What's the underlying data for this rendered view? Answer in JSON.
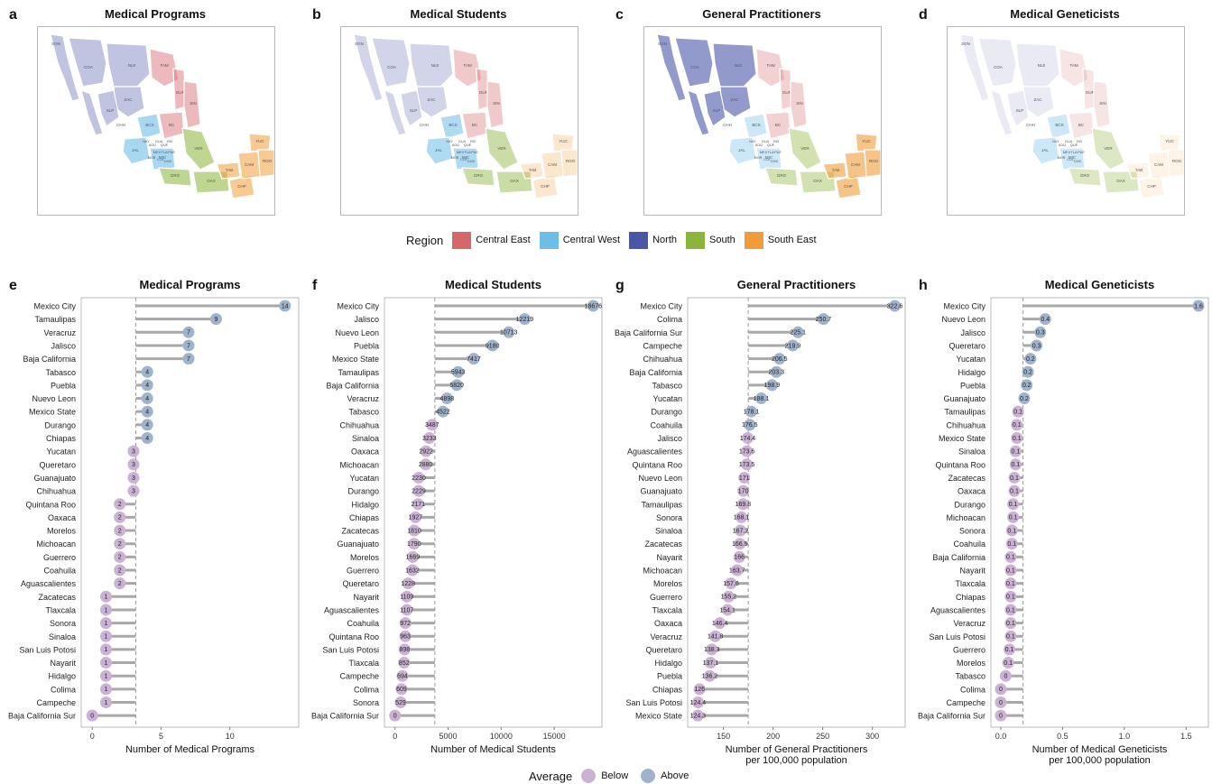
{
  "maps": [
    {
      "letter": "a",
      "title": "Medical Programs"
    },
    {
      "letter": "b",
      "title": "Medical Students"
    },
    {
      "letter": "c",
      "title": "General Practitioners"
    },
    {
      "letter": "d",
      "title": "Medical Geneticists"
    }
  ],
  "map_state_labels": [
    "SON",
    "CHH",
    "COA",
    "NLE",
    "TAM",
    "DUR",
    "SIN",
    "ZAC",
    "SLP",
    "BCS",
    "BC",
    "JAL",
    "MIC",
    "GRO",
    "OAX",
    "CHP",
    "VER",
    "YUC",
    "ROO",
    "CAM",
    "TAB",
    "NAY",
    "AGU",
    "GUA",
    "QUE",
    "HID",
    "MEX",
    "TLA",
    "PUE",
    "MOR",
    "COL",
    "CMX"
  ],
  "region_legend": {
    "title": "Region",
    "items": [
      {
        "label": "Central East",
        "color": "#d4676a"
      },
      {
        "label": "Central West",
        "color": "#6cbde8"
      },
      {
        "label": "North",
        "color": "#4a56a8"
      },
      {
        "label": "South",
        "color": "#8bb43a"
      },
      {
        "label": "South East",
        "color": "#f09c3a"
      }
    ]
  },
  "average_legend": {
    "title": "Average",
    "items": [
      {
        "label": "Below",
        "color": "#cbb1d3"
      },
      {
        "label": "Above",
        "color": "#9fb3cc"
      }
    ]
  },
  "chart_data": [
    {
      "type": "scatter",
      "letter": "e",
      "title": "Medical Programs",
      "xlabel": "Number of Medical Programs",
      "xlim": [
        -0.8,
        15.0
      ],
      "xticks": [
        0,
        5,
        10
      ],
      "average": 3.16,
      "categories": [
        "Mexico City",
        "Tamaulipas",
        "Veracruz",
        "Jalisco",
        "Baja California",
        "Tabasco",
        "Puebla",
        "Nuevo Leon",
        "Mexico State",
        "Durango",
        "Chiapas",
        "Yucatan",
        "Queretaro",
        "Guanajuato",
        "Chihuahua",
        "Quintana Roo",
        "Oaxaca",
        "Morelos",
        "Michoacan",
        "Guerrero",
        "Coahuila",
        "Aguascalientes",
        "Zacatecas",
        "Tlaxcala",
        "Sonora",
        "Sinaloa",
        "San Luis Potosi",
        "Nayarit",
        "Hidalgo",
        "Colima",
        "Campeche",
        "Baja California Sur"
      ],
      "values": [
        14,
        9,
        7,
        7,
        7,
        4,
        4,
        4,
        4,
        4,
        4,
        3,
        3,
        3,
        3,
        2,
        2,
        2,
        2,
        2,
        2,
        2,
        1,
        1,
        1,
        1,
        1,
        1,
        1,
        1,
        1,
        0
      ],
      "labels": [
        "14",
        "9",
        "7",
        "7",
        "7",
        "4",
        "4",
        "4",
        "4",
        "4",
        "4",
        "3",
        "3",
        "3",
        "3",
        "2",
        "2",
        "2",
        "2",
        "2",
        "2",
        "2",
        "1",
        "1",
        "1",
        "1",
        "1",
        "1",
        "1",
        "1",
        "1",
        "0"
      ]
    },
    {
      "type": "scatter",
      "letter": "f",
      "title": "Medical Students",
      "xlabel": "Number of Medical Students",
      "xlim": [
        -1000,
        19500
      ],
      "xticks": [
        0,
        5000,
        10000,
        15000
      ],
      "average": 3750,
      "categories": [
        "Mexico City",
        "Jalisco",
        "Nuevo Leon",
        "Puebla",
        "Mexico State",
        "Tamaulipas",
        "Baja California",
        "Veracruz",
        "Tabasco",
        "Chihuahua",
        "Sinaloa",
        "Oaxaca",
        "Michoacan",
        "Yucatan",
        "Durango",
        "Hidalgo",
        "Chiapas",
        "Zacatecas",
        "Guanajuato",
        "Morelos",
        "Guerrero",
        "Queretaro",
        "Nayarit",
        "Aguascalientes",
        "Coahuila",
        "Quintana Roo",
        "San Luis Potosi",
        "Tlaxcala",
        "Campeche",
        "Colima",
        "Sonora",
        "Baja California Sur"
      ],
      "values": [
        18676,
        12219,
        10713,
        9180,
        7417,
        5943,
        5820,
        4898,
        4522,
        3487,
        3233,
        2922,
        2880,
        2230,
        2229,
        2171,
        1927,
        1810,
        1790,
        1669,
        1632,
        1228,
        1109,
        1107,
        972,
        963,
        898,
        852,
        694,
        609,
        529,
        0
      ],
      "labels": [
        "18676",
        "12219",
        "10713",
        "9180",
        "7417",
        "5943",
        "5820",
        "4898",
        "4522",
        "3487",
        "3233",
        "2922",
        "2880",
        "2230",
        "2229",
        "2171",
        "1927",
        "1810",
        "1790",
        "1669",
        "1632",
        "1228",
        "1109",
        "1107",
        "972",
        "963",
        "898",
        "852",
        "694",
        "609",
        "529",
        "0"
      ]
    },
    {
      "type": "scatter",
      "letter": "g",
      "title": "General Practitioners",
      "xlabel": "Number of General Practitioners",
      "xlabel2": "per 100,000 population",
      "xlim": [
        114,
        333
      ],
      "xticks": [
        150,
        200,
        250,
        300
      ],
      "average": 175,
      "categories": [
        "Mexico City",
        "Colima",
        "Baja California Sur",
        "Campeche",
        "Chihuahua",
        "Baja California",
        "Tabasco",
        "Yucatan",
        "Durango",
        "Coahuila",
        "Jalisco",
        "Aguascalientes",
        "Quintana Roo",
        "Nuevo Leon",
        "Guanajuato",
        "Tamaulipas",
        "Sonora",
        "Sinaloa",
        "Zacatecas",
        "Nayarit",
        "Michoacan",
        "Morelos",
        "Guerrero",
        "Tlaxcala",
        "Oaxaca",
        "Veracruz",
        "Queretaro",
        "Hidalgo",
        "Puebla",
        "Chiapas",
        "San Luis Potosi",
        "Mexico State"
      ],
      "values": [
        322.6,
        250.7,
        225.1,
        219.9,
        206.5,
        203.3,
        198.9,
        188.1,
        178.1,
        176.5,
        174.4,
        173.6,
        173.5,
        171,
        170,
        169.8,
        168.1,
        167.2,
        166.5,
        166,
        163.7,
        157.6,
        155.2,
        154.1,
        146.4,
        141.8,
        138.3,
        137.1,
        136.2,
        126,
        124.4,
        124.3
      ],
      "labels": [
        "322.6",
        "250.7",
        "225.1",
        "219.9",
        "206.5",
        "203.3",
        "198.9",
        "188.1",
        "178.1",
        "176.5",
        "174.4",
        "173.6",
        "173.5",
        "171",
        "170",
        "169.8",
        "168.1",
        "167.2",
        "166.5",
        "166",
        "163.7",
        "157.6",
        "155.2",
        "154.1",
        "146.4",
        "141.8",
        "138.3",
        "137.1",
        "136.2",
        "126",
        "124.4",
        "124.3"
      ]
    },
    {
      "type": "scatter",
      "letter": "h",
      "title": "Medical Geneticists",
      "xlabel": "Number of Medical Geneticists",
      "xlabel2": "per 100,000 population",
      "xlim": [
        -0.08,
        1.68
      ],
      "xticks": [
        0.0,
        0.5,
        1.0,
        1.5
      ],
      "xtick_labels": [
        "0.0",
        "0.5",
        "1.0",
        "1.5"
      ],
      "average": 0.18,
      "categories": [
        "Mexico City",
        "Nuevo Leon",
        "Jalisco",
        "Queretaro",
        "Yucatan",
        "Hidalgo",
        "Puebla",
        "Guanajuato",
        "Tamaulipas",
        "Chihuahua",
        "Mexico State",
        "Sinaloa",
        "Quintana Roo",
        "Zacatecas",
        "Oaxaca",
        "Durango",
        "Michoacan",
        "Sonora",
        "Coahuila",
        "Baja California",
        "Nayarit",
        "Tlaxcala",
        "Chiapas",
        "Aguascalientes",
        "Veracruz",
        "San Luis Potosi",
        "Guerrero",
        "Morelos",
        "Tabasco",
        "Colima",
        "Campeche",
        "Baja California Sur"
      ],
      "values": [
        1.6,
        0.36,
        0.32,
        0.29,
        0.24,
        0.22,
        0.21,
        0.19,
        0.14,
        0.13,
        0.13,
        0.12,
        0.12,
        0.11,
        0.11,
        0.1,
        0.1,
        0.09,
        0.09,
        0.08,
        0.08,
        0.08,
        0.08,
        0.08,
        0.08,
        0.08,
        0.07,
        0.06,
        0.04,
        0.0,
        0.0,
        0.0
      ],
      "labels": [
        "1.6",
        "0.4",
        "0.3",
        "0.3",
        "0.2",
        "0.2",
        "0.2",
        "0.2",
        "0.1",
        "0.1",
        "0.1",
        "0.1",
        "0.1",
        "0.1",
        "0.1",
        "0.1",
        "0.1",
        "0.1",
        "0.1",
        "0.1",
        "0.1",
        "0.1",
        "0.1",
        "0.1",
        "0.1",
        "0.1",
        "0.1",
        "0.1",
        "0",
        "0",
        "0",
        "0"
      ]
    }
  ]
}
